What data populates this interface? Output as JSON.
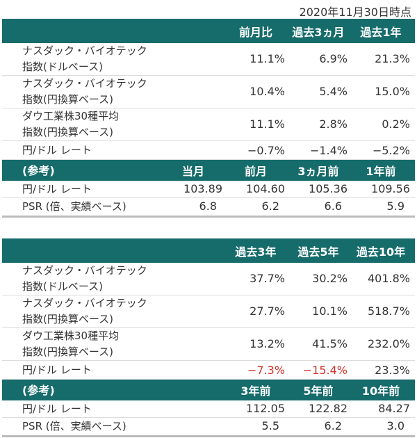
{
  "as_of": "2020年11月30日時点",
  "colors": {
    "header_bg": "#166b6b",
    "negative_highlight": "#d0312d"
  },
  "tables": [
    {
      "header": [
        "前月比",
        "過去3ヵ月",
        "過去1年"
      ],
      "rows": [
        {
          "label": [
            "ナスダック・バイオテック",
            "指数(ドルベース)"
          ],
          "values": [
            "11.1%",
            "6.9%",
            "21.3%"
          ],
          "red": []
        },
        {
          "label": [
            "ナスダック・バイオテック",
            "指数(円換算ベース)"
          ],
          "values": [
            "10.4%",
            "5.4%",
            "15.0%"
          ],
          "red": []
        },
        {
          "label": [
            "ダウ工業株30種平均",
            "指数(円換算ベース)"
          ],
          "values": [
            "11.1%",
            "2.8%",
            "0.2%"
          ],
          "red": []
        },
        {
          "label": [
            "円/ドル レート"
          ],
          "values": [
            "−0.7%",
            "−1.4%",
            "−5.2%"
          ],
          "red": []
        }
      ],
      "ref_header": {
        "label": "(参考)",
        "cols": [
          "当月",
          "前月",
          "3ヵ月前",
          "1年前"
        ]
      },
      "ref_rows": [
        {
          "label": "円/ドル レート",
          "values": [
            "103.89",
            "104.60",
            "105.36",
            "109.56"
          ]
        },
        {
          "label": "PSR (倍、実績ベース)",
          "values": [
            "6.8",
            "6.2",
            "6.6",
            "5.9"
          ]
        }
      ]
    },
    {
      "header": [
        "過去3年",
        "過去5年",
        "過去10年"
      ],
      "rows": [
        {
          "label": [
            "ナスダック・バイオテック",
            "指数(ドルベース)"
          ],
          "values": [
            "37.7%",
            "30.2%",
            "401.8%"
          ],
          "red": []
        },
        {
          "label": [
            "ナスダック・バイオテック",
            "指数(円換算ベース)"
          ],
          "values": [
            "27.7%",
            "10.1%",
            "518.7%"
          ],
          "red": []
        },
        {
          "label": [
            "ダウ工業株30種平均",
            "指数(円換算ベース)"
          ],
          "values": [
            "13.2%",
            "41.5%",
            "232.0%"
          ],
          "red": []
        },
        {
          "label": [
            "円/ドル レート"
          ],
          "values": [
            "−7.3%",
            "−15.4%",
            "23.3%"
          ],
          "red": [
            0,
            1
          ]
        }
      ],
      "ref_header": {
        "label": "(参考)",
        "cols": [
          "3年前",
          "5年前",
          "10年前"
        ]
      },
      "ref_rows": [
        {
          "label": "円/ドル レート",
          "values": [
            "112.05",
            "122.82",
            "84.27"
          ]
        },
        {
          "label": "PSR (倍、実績ベース)",
          "values": [
            "5.5",
            "6.2",
            "3.0"
          ]
        }
      ]
    }
  ]
}
